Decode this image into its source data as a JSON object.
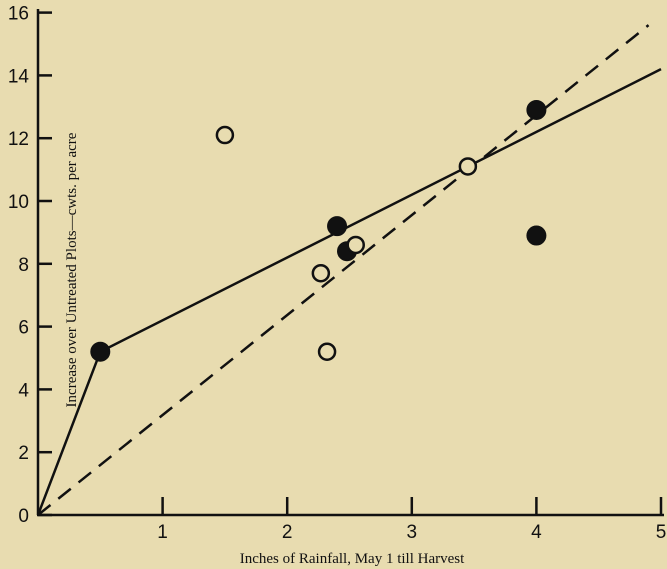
{
  "colors": {
    "background": "#e8dcb0",
    "ink": "#111111"
  },
  "chart_data": {
    "type": "scatter",
    "title": "",
    "xlabel": "Inches of Rainfall, May 1 till Harvest",
    "ylabel": "Increase over Untreated Plots—cwts. per acre",
    "xlim": [
      0,
      5
    ],
    "ylim": [
      0,
      16
    ],
    "x_ticks": [
      1,
      2,
      3,
      4,
      5
    ],
    "y_ticks": [
      0,
      2,
      4,
      6,
      8,
      10,
      12,
      14,
      16
    ],
    "grid": false,
    "legend": "none",
    "series": [
      {
        "marker": "filled-circle",
        "points": [
          [
            0.5,
            5.2
          ],
          [
            2.4,
            9.2
          ],
          [
            2.48,
            8.4
          ],
          [
            4.0,
            12.9
          ],
          [
            4.0,
            8.9
          ]
        ]
      },
      {
        "marker": "open-circle",
        "points": [
          [
            1.5,
            12.1
          ],
          [
            2.27,
            7.7
          ],
          [
            2.55,
            8.6
          ],
          [
            2.32,
            5.2
          ],
          [
            3.45,
            11.1
          ]
        ]
      }
    ],
    "lines": [
      {
        "style": "solid",
        "points": [
          [
            0,
            0
          ],
          [
            0.5,
            5.2
          ],
          [
            5.0,
            14.2
          ]
        ]
      },
      {
        "style": "dashed",
        "points": [
          [
            0,
            0
          ],
          [
            4.9,
            15.6
          ]
        ]
      }
    ]
  }
}
